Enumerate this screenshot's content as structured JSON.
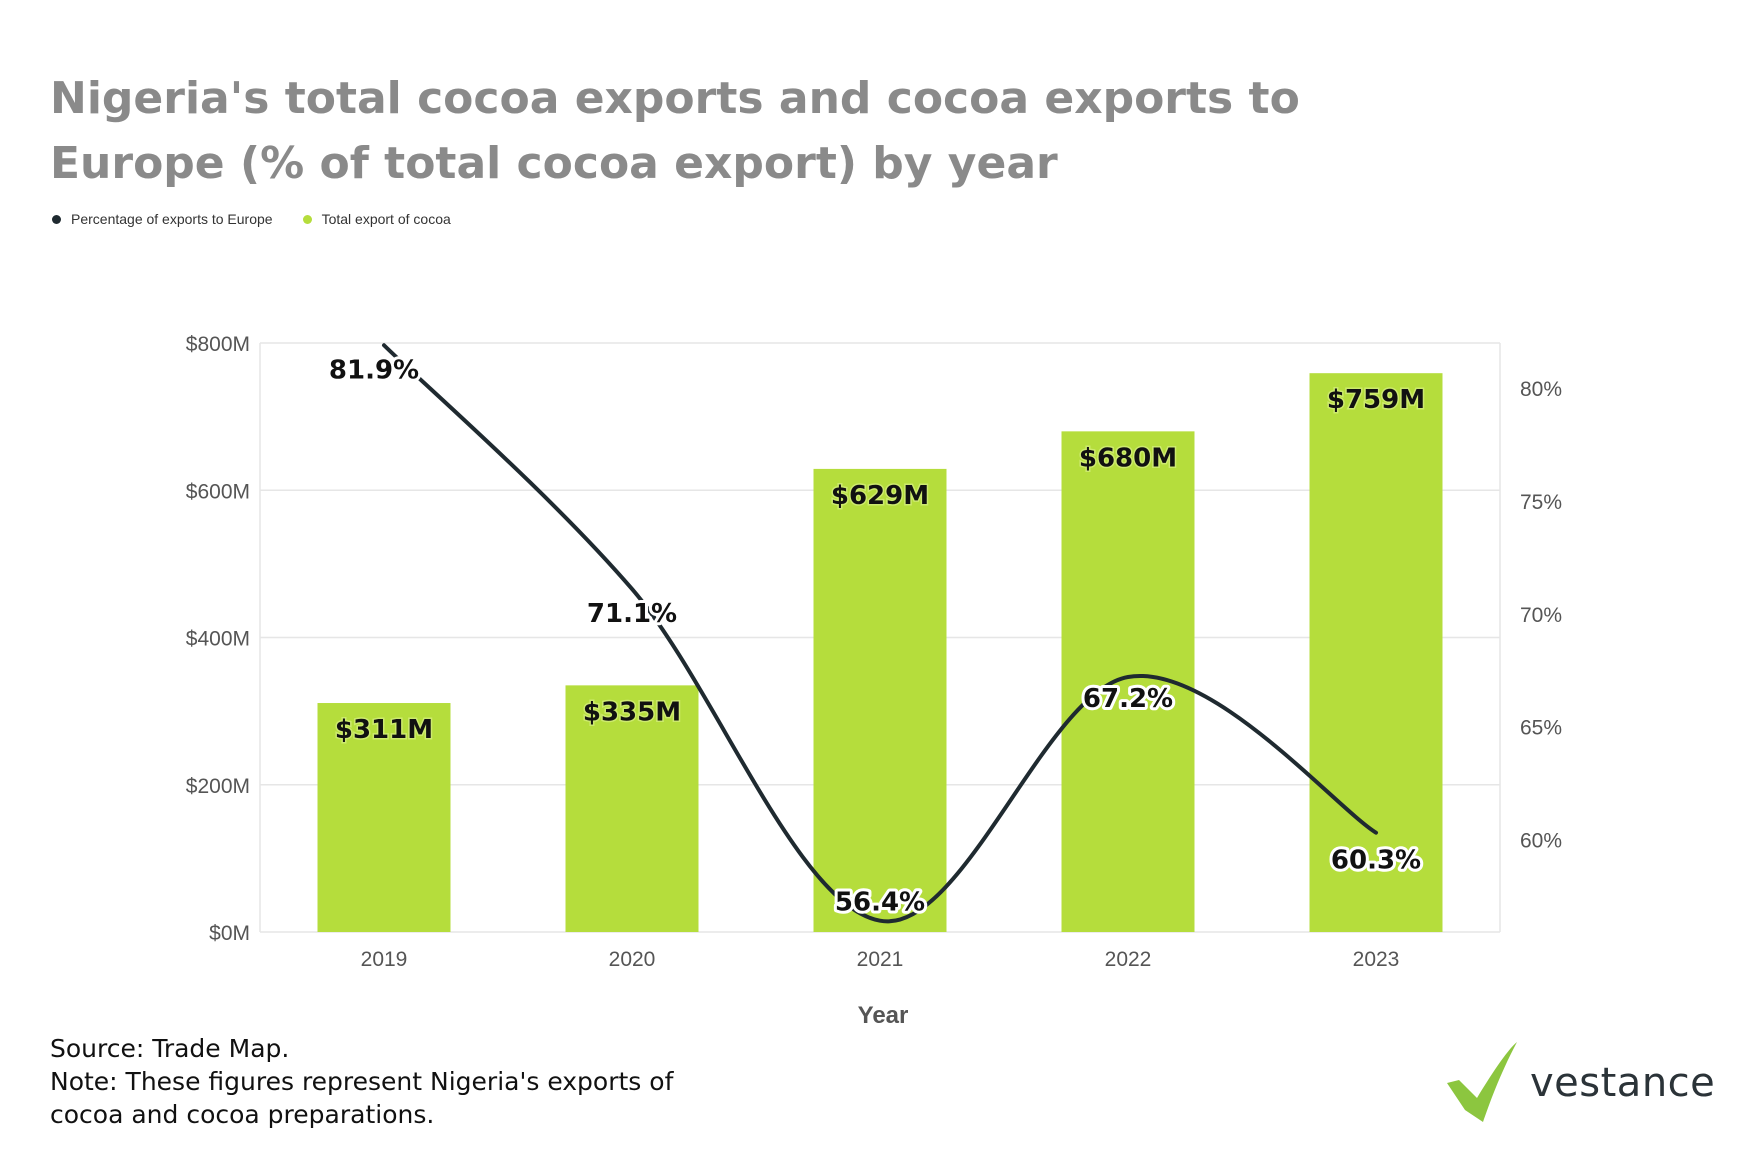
{
  "title": "Nigeria's total cocoa exports and cocoa exports to Europe (% of total cocoa export) by year",
  "legend": [
    {
      "label": "Percentage of exports to Europe",
      "color": "#1f2a30"
    },
    {
      "label": "Total export of cocoa",
      "color": "#b5dd3c"
    }
  ],
  "chart_data": {
    "type": "bar",
    "categories": [
      "2019",
      "2020",
      "2021",
      "2022",
      "2023"
    ],
    "series": [
      {
        "name": "Total export of cocoa",
        "type": "bar",
        "axis": "left",
        "values": [
          311,
          335,
          629,
          680,
          759
        ],
        "labels": [
          "$311M",
          "$335M",
          "$629M",
          "$680M",
          "$759M"
        ],
        "color": "#b5dd3c"
      },
      {
        "name": "Percentage of exports to Europe",
        "type": "line",
        "axis": "right",
        "values": [
          81.9,
          71.1,
          56.4,
          67.2,
          60.3
        ],
        "labels": [
          "81.9%",
          "71.1%",
          "56.4%",
          "67.2%",
          "60.3%"
        ],
        "color": "#1f2a30"
      }
    ],
    "xlabel": "Year",
    "left_axis": {
      "ylim": [
        0,
        800
      ],
      "ticks": [
        0,
        200,
        400,
        600,
        800
      ],
      "tick_labels": [
        "$0M",
        "$200M",
        "$400M",
        "$600M",
        "$800M"
      ]
    },
    "right_axis": {
      "ylim": [
        55.9,
        82
      ],
      "ticks": [
        60,
        65,
        70,
        75,
        80
      ],
      "tick_labels": [
        "60%",
        "65%",
        "70%",
        "75%",
        "80%"
      ]
    },
    "grid": true,
    "legend_position": "top-left"
  },
  "footer": {
    "lines": [
      "Source: Trade Map.",
      "Note: These figures represent Nigeria's exports of",
      "cocoa and cocoa preparations."
    ]
  },
  "brand": {
    "name": "vestance",
    "accent": "#8cc63f"
  }
}
